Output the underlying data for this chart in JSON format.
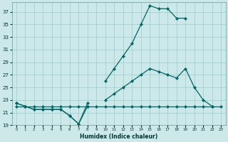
{
  "xlabel": "Humidex (Indice chaleur)",
  "x": [
    0,
    1,
    2,
    3,
    4,
    5,
    6,
    7,
    8,
    9,
    10,
    11,
    12,
    13,
    14,
    15,
    16,
    17,
    18,
    19,
    20,
    21,
    22,
    23
  ],
  "line_flat": [
    22,
    22,
    22,
    22,
    22,
    22,
    22,
    22,
    22,
    22,
    22,
    22,
    22,
    22,
    22,
    22,
    22,
    22,
    22,
    22,
    22,
    22,
    22,
    22
  ],
  "line_mid": [
    22.5,
    22,
    21.5,
    21.5,
    21.5,
    21.5,
    20.5,
    19.2,
    22,
    null,
    23,
    24,
    25,
    26,
    27,
    28,
    27.5,
    27,
    26.5,
    28,
    25,
    23,
    22,
    null
  ],
  "line_high": [
    22.5,
    22,
    21.5,
    21.5,
    21.5,
    21.5,
    20.5,
    19.2,
    22.5,
    null,
    26,
    28,
    30,
    32,
    35,
    38,
    37.5,
    37.5,
    36,
    36,
    null,
    null,
    null,
    null
  ],
  "bg_color": "#cce8e8",
  "line_color": "#006666",
  "grid_color": "#99cccc",
  "ylim": [
    19,
    38.5
  ],
  "yticks": [
    19,
    21,
    23,
    25,
    27,
    29,
    31,
    33,
    35,
    37
  ],
  "xlim": [
    -0.5,
    23.5
  ]
}
